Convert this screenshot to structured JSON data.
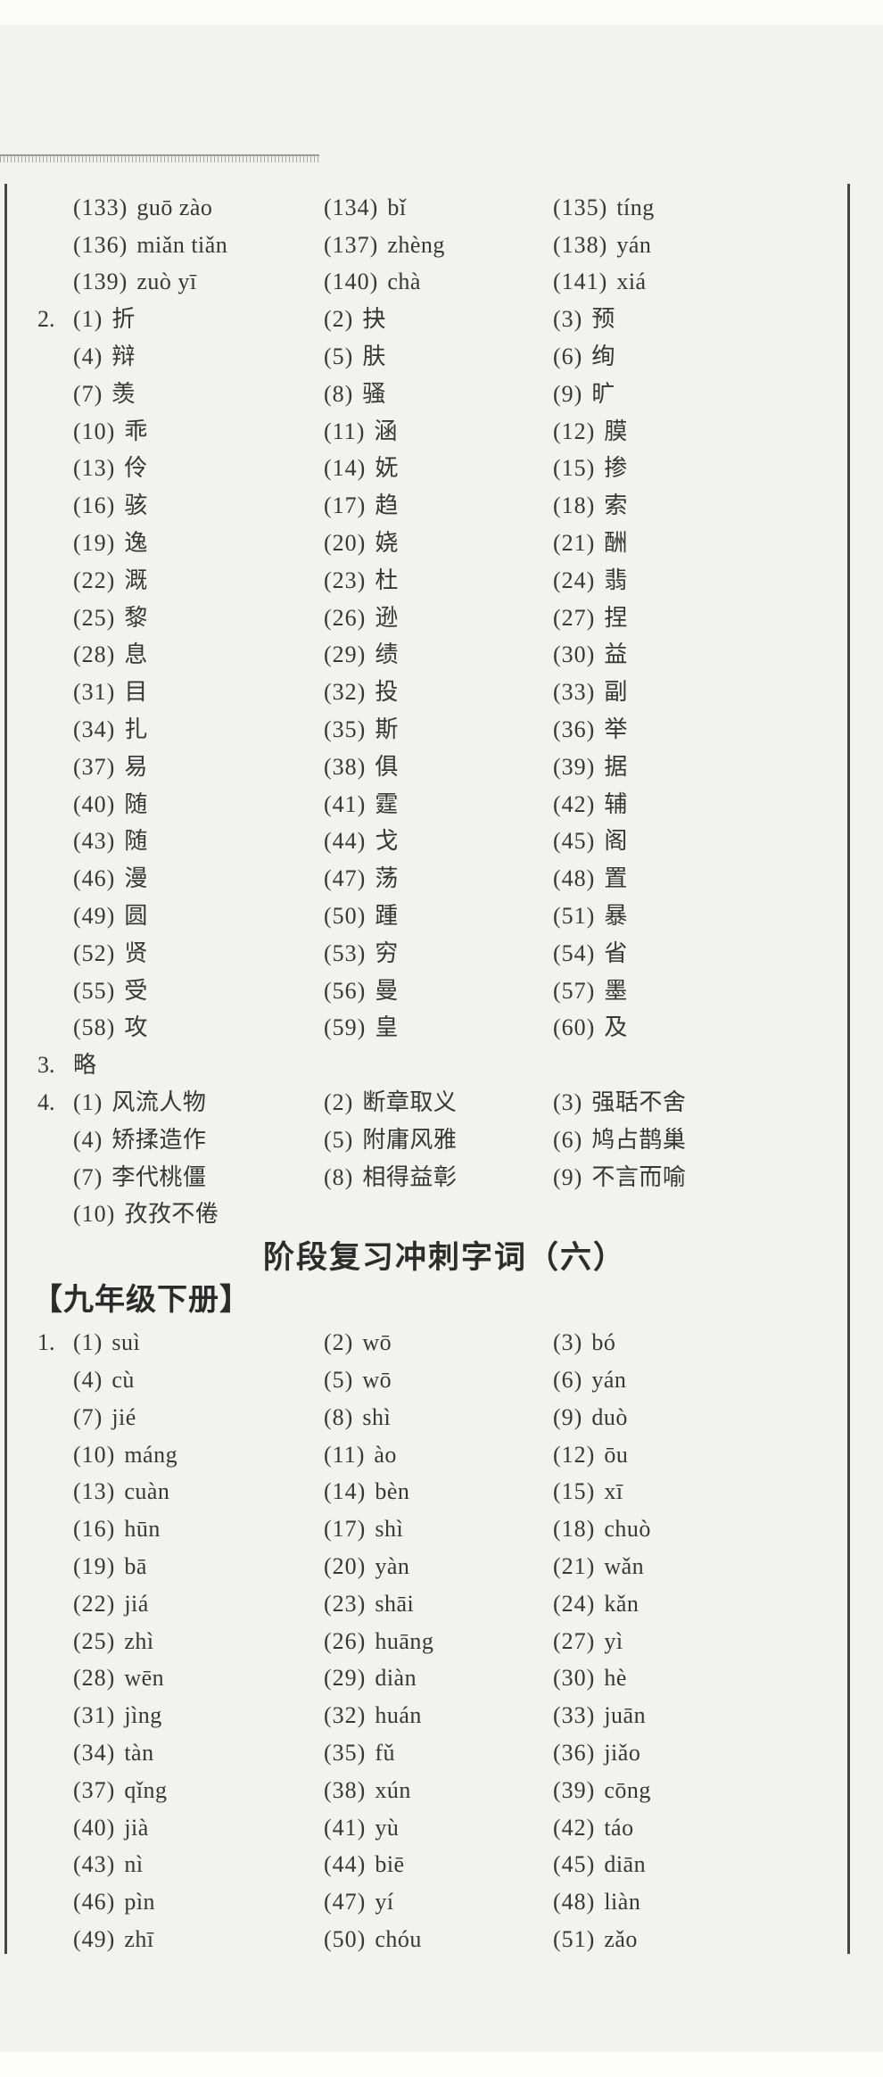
{
  "colors": {
    "background": "#f2f2f0",
    "text": "#373737",
    "border": "#454545",
    "rule": "#9a9a9a"
  },
  "header": {
    "title": "阶段复习冲刺字词（六）",
    "subheading": "【九年级下册】"
  },
  "answers_top": {
    "rows": [
      {
        "marker": "",
        "cells": [
          {
            "no": "(133)",
            "text": "guō zào"
          },
          {
            "no": "(134)",
            "text": "bǐ"
          },
          {
            "no": "(135)",
            "text": "tíng"
          }
        ]
      },
      {
        "marker": "",
        "cells": [
          {
            "no": "(136)",
            "text": "miǎn tiǎn"
          },
          {
            "no": "(137)",
            "text": "zhèng"
          },
          {
            "no": "(138)",
            "text": "yán"
          }
        ]
      },
      {
        "marker": "",
        "cells": [
          {
            "no": "(139)",
            "text": "zuò yī"
          },
          {
            "no": "(140)",
            "text": "chà"
          },
          {
            "no": "(141)",
            "text": "xiá"
          }
        ]
      },
      {
        "marker": "2.",
        "cells": [
          {
            "no": "(1)",
            "text": "折"
          },
          {
            "no": "(2)",
            "text": "抉"
          },
          {
            "no": "(3)",
            "text": "预"
          }
        ]
      },
      {
        "marker": "",
        "cells": [
          {
            "no": "(4)",
            "text": "辩"
          },
          {
            "no": "(5)",
            "text": "肤"
          },
          {
            "no": "(6)",
            "text": "绚"
          }
        ]
      },
      {
        "marker": "",
        "cells": [
          {
            "no": "(7)",
            "text": "羡"
          },
          {
            "no": "(8)",
            "text": "骚"
          },
          {
            "no": "(9)",
            "text": "旷"
          }
        ]
      },
      {
        "marker": "",
        "cells": [
          {
            "no": "(10)",
            "text": "乖"
          },
          {
            "no": "(11)",
            "text": "涵"
          },
          {
            "no": "(12)",
            "text": "膜"
          }
        ]
      },
      {
        "marker": "",
        "cells": [
          {
            "no": "(13)",
            "text": "伶"
          },
          {
            "no": "(14)",
            "text": "妩"
          },
          {
            "no": "(15)",
            "text": "掺"
          }
        ]
      },
      {
        "marker": "",
        "cells": [
          {
            "no": "(16)",
            "text": "骇"
          },
          {
            "no": "(17)",
            "text": "趋"
          },
          {
            "no": "(18)",
            "text": "索"
          }
        ]
      },
      {
        "marker": "",
        "cells": [
          {
            "no": "(19)",
            "text": "逸"
          },
          {
            "no": "(20)",
            "text": "娆"
          },
          {
            "no": "(21)",
            "text": "酬"
          }
        ]
      },
      {
        "marker": "",
        "cells": [
          {
            "no": "(22)",
            "text": "溉"
          },
          {
            "no": "(23)",
            "text": "杜"
          },
          {
            "no": "(24)",
            "text": "翡"
          }
        ]
      },
      {
        "marker": "",
        "cells": [
          {
            "no": "(25)",
            "text": "黎"
          },
          {
            "no": "(26)",
            "text": "逊"
          },
          {
            "no": "(27)",
            "text": "捏"
          }
        ]
      },
      {
        "marker": "",
        "cells": [
          {
            "no": "(28)",
            "text": "息"
          },
          {
            "no": "(29)",
            "text": "绩"
          },
          {
            "no": "(30)",
            "text": "益"
          }
        ]
      },
      {
        "marker": "",
        "cells": [
          {
            "no": "(31)",
            "text": "目"
          },
          {
            "no": "(32)",
            "text": "投"
          },
          {
            "no": "(33)",
            "text": "副"
          }
        ]
      },
      {
        "marker": "",
        "cells": [
          {
            "no": "(34)",
            "text": "扎"
          },
          {
            "no": "(35)",
            "text": "斯"
          },
          {
            "no": "(36)",
            "text": "举"
          }
        ]
      },
      {
        "marker": "",
        "cells": [
          {
            "no": "(37)",
            "text": "易"
          },
          {
            "no": "(38)",
            "text": "俱"
          },
          {
            "no": "(39)",
            "text": "据"
          }
        ]
      },
      {
        "marker": "",
        "cells": [
          {
            "no": "(40)",
            "text": "随"
          },
          {
            "no": "(41)",
            "text": "霆"
          },
          {
            "no": "(42)",
            "text": "辅"
          }
        ]
      },
      {
        "marker": "",
        "cells": [
          {
            "no": "(43)",
            "text": "随"
          },
          {
            "no": "(44)",
            "text": "戈"
          },
          {
            "no": "(45)",
            "text": "阁"
          }
        ]
      },
      {
        "marker": "",
        "cells": [
          {
            "no": "(46)",
            "text": "漫"
          },
          {
            "no": "(47)",
            "text": "荡"
          },
          {
            "no": "(48)",
            "text": "置"
          }
        ]
      },
      {
        "marker": "",
        "cells": [
          {
            "no": "(49)",
            "text": "圆"
          },
          {
            "no": "(50)",
            "text": "踵"
          },
          {
            "no": "(51)",
            "text": "暴"
          }
        ]
      },
      {
        "marker": "",
        "cells": [
          {
            "no": "(52)",
            "text": "贤"
          },
          {
            "no": "(53)",
            "text": "穷"
          },
          {
            "no": "(54)",
            "text": "省"
          }
        ]
      },
      {
        "marker": "",
        "cells": [
          {
            "no": "(55)",
            "text": "受"
          },
          {
            "no": "(56)",
            "text": "曼"
          },
          {
            "no": "(57)",
            "text": "墨"
          }
        ]
      },
      {
        "marker": "",
        "cells": [
          {
            "no": "(58)",
            "text": "攻"
          },
          {
            "no": "(59)",
            "text": "皇"
          },
          {
            "no": "(60)",
            "text": "及"
          }
        ]
      },
      {
        "marker": "3.",
        "cells": [
          {
            "no": "",
            "text": "略"
          }
        ]
      },
      {
        "marker": "4.",
        "cells": [
          {
            "no": "(1)",
            "text": "风流人物"
          },
          {
            "no": "(2)",
            "text": "断章取义"
          },
          {
            "no": "(3)",
            "text": "强聒不舍"
          }
        ]
      },
      {
        "marker": "",
        "cells": [
          {
            "no": "(4)",
            "text": "矫揉造作"
          },
          {
            "no": "(5)",
            "text": "附庸风雅"
          },
          {
            "no": "(6)",
            "text": "鸠占鹊巢"
          }
        ]
      },
      {
        "marker": "",
        "cells": [
          {
            "no": "(7)",
            "text": "李代桃僵"
          },
          {
            "no": "(8)",
            "text": "相得益彰"
          },
          {
            "no": "(9)",
            "text": "不言而喻"
          }
        ]
      },
      {
        "marker": "",
        "cells": [
          {
            "no": "(10)",
            "text": "孜孜不倦"
          }
        ]
      }
    ]
  },
  "answers_bottom": {
    "rows": [
      {
        "marker": "1.",
        "cells": [
          {
            "no": "(1)",
            "text": "suì"
          },
          {
            "no": "(2)",
            "text": "wō"
          },
          {
            "no": "(3)",
            "text": "bó"
          }
        ]
      },
      {
        "marker": "",
        "cells": [
          {
            "no": "(4)",
            "text": "cù"
          },
          {
            "no": "(5)",
            "text": "wō"
          },
          {
            "no": "(6)",
            "text": "yán"
          }
        ]
      },
      {
        "marker": "",
        "cells": [
          {
            "no": "(7)",
            "text": "jié"
          },
          {
            "no": "(8)",
            "text": "shì"
          },
          {
            "no": "(9)",
            "text": "duò"
          }
        ]
      },
      {
        "marker": "",
        "cells": [
          {
            "no": "(10)",
            "text": "máng"
          },
          {
            "no": "(11)",
            "text": "ào"
          },
          {
            "no": "(12)",
            "text": "ōu"
          }
        ]
      },
      {
        "marker": "",
        "cells": [
          {
            "no": "(13)",
            "text": "cuàn"
          },
          {
            "no": "(14)",
            "text": "bèn"
          },
          {
            "no": "(15)",
            "text": "xī"
          }
        ]
      },
      {
        "marker": "",
        "cells": [
          {
            "no": "(16)",
            "text": "hūn"
          },
          {
            "no": "(17)",
            "text": "shì"
          },
          {
            "no": "(18)",
            "text": "chuò"
          }
        ]
      },
      {
        "marker": "",
        "cells": [
          {
            "no": "(19)",
            "text": "bā"
          },
          {
            "no": "(20)",
            "text": "yàn"
          },
          {
            "no": "(21)",
            "text": "wǎn"
          }
        ]
      },
      {
        "marker": "",
        "cells": [
          {
            "no": "(22)",
            "text": "jiá"
          },
          {
            "no": "(23)",
            "text": "shāi"
          },
          {
            "no": "(24)",
            "text": "kǎn"
          }
        ]
      },
      {
        "marker": "",
        "cells": [
          {
            "no": "(25)",
            "text": "zhì"
          },
          {
            "no": "(26)",
            "text": "huāng"
          },
          {
            "no": "(27)",
            "text": "yì"
          }
        ]
      },
      {
        "marker": "",
        "cells": [
          {
            "no": "(28)",
            "text": "wēn"
          },
          {
            "no": "(29)",
            "text": "diàn"
          },
          {
            "no": "(30)",
            "text": "hè"
          }
        ]
      },
      {
        "marker": "",
        "cells": [
          {
            "no": "(31)",
            "text": "jìng"
          },
          {
            "no": "(32)",
            "text": "huán"
          },
          {
            "no": "(33)",
            "text": "juān"
          }
        ]
      },
      {
        "marker": "",
        "cells": [
          {
            "no": "(34)",
            "text": "tàn"
          },
          {
            "no": "(35)",
            "text": "fǔ"
          },
          {
            "no": "(36)",
            "text": "jiǎo"
          }
        ]
      },
      {
        "marker": "",
        "cells": [
          {
            "no": "(37)",
            "text": "qǐng"
          },
          {
            "no": "(38)",
            "text": "xún"
          },
          {
            "no": "(39)",
            "text": "cōng"
          }
        ]
      },
      {
        "marker": "",
        "cells": [
          {
            "no": "(40)",
            "text": "jià"
          },
          {
            "no": "(41)",
            "text": "yù"
          },
          {
            "no": "(42)",
            "text": "táo"
          }
        ]
      },
      {
        "marker": "",
        "cells": [
          {
            "no": "(43)",
            "text": "nì"
          },
          {
            "no": "(44)",
            "text": "biē"
          },
          {
            "no": "(45)",
            "text": "diān"
          }
        ]
      },
      {
        "marker": "",
        "cells": [
          {
            "no": "(46)",
            "text": "pìn"
          },
          {
            "no": "(47)",
            "text": "yí"
          },
          {
            "no": "(48)",
            "text": "liàn"
          }
        ]
      },
      {
        "marker": "",
        "cells": [
          {
            "no": "(49)",
            "text": "zhī"
          },
          {
            "no": "(50)",
            "text": "chóu"
          },
          {
            "no": "(51)",
            "text": "zǎo"
          }
        ]
      }
    ]
  }
}
